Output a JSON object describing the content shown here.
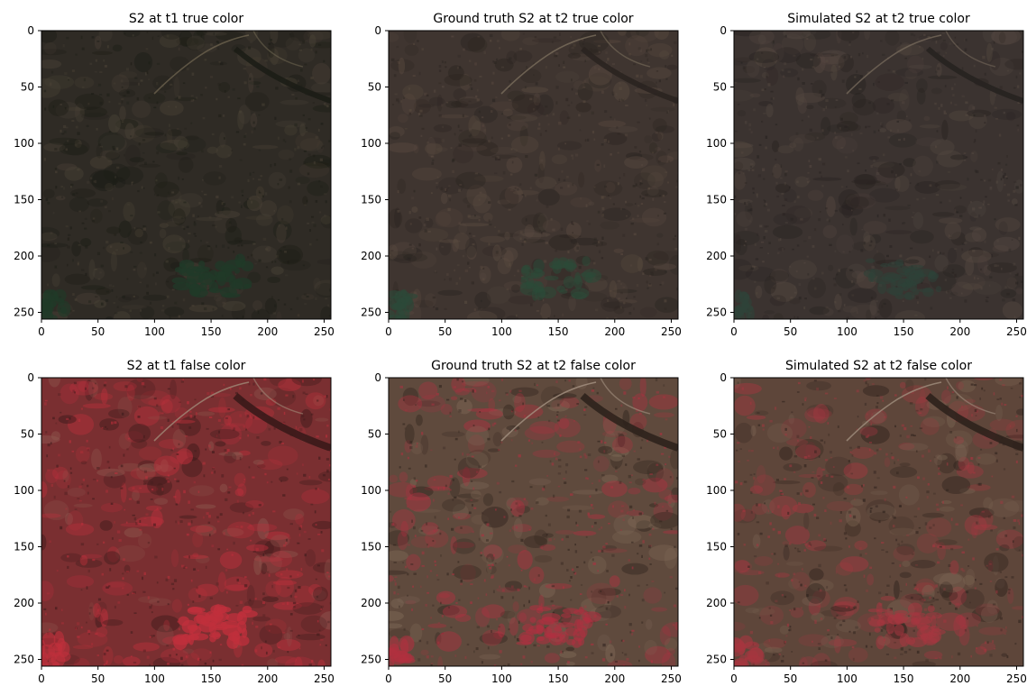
{
  "panels": [
    {
      "id": "s2-t1-true",
      "title": "S2 at t1 true color",
      "mode": "true",
      "look": "t1"
    },
    {
      "id": "gt-s2-t2-true",
      "title": "Ground truth S2 at t2 true color",
      "mode": "true",
      "look": "gt"
    },
    {
      "id": "sim-s2-t2-true",
      "title": "Simulated S2 at t2 true color",
      "mode": "true",
      "look": "sim"
    },
    {
      "id": "s2-t1-false",
      "title": "S2 at t1 false color",
      "mode": "false",
      "look": "t1"
    },
    {
      "id": "gt-s2-t2-false",
      "title": "Ground truth S2 at t2 false color",
      "mode": "false",
      "look": "gt"
    },
    {
      "id": "sim-s2-t2-false",
      "title": "Simulated S2 at t2 false color",
      "mode": "false",
      "look": "sim"
    }
  ],
  "axes": {
    "x_ticks": [
      "0",
      "50",
      "100",
      "150",
      "200",
      "250"
    ],
    "y_ticks": [
      "0",
      "50",
      "100",
      "150",
      "200",
      "250"
    ],
    "xlim": [
      0,
      256
    ],
    "ylim": [
      256,
      0
    ]
  },
  "palette": {
    "true": {
      "t1": {
        "base": "#2f2b25",
        "dark": "#1c1d16",
        "light": "#4a4236",
        "green": "#203a28",
        "road": "#6b624e"
      },
      "gt": {
        "base": "#3f3530",
        "dark": "#2a2420",
        "light": "#5a4b40",
        "green": "#2b4a38",
        "road": "#7a6e5c"
      },
      "sim": {
        "base": "#3b3330",
        "dark": "#272220",
        "light": "#544840",
        "green": "#2e4238",
        "road": "#74685a"
      }
    },
    "false": {
      "t1": {
        "base": "#7a2f31",
        "dark": "#3a1a1a",
        "red": "#c0303c",
        "light": "#8e5a50",
        "road": "#a08a78"
      },
      "gt": {
        "base": "#5f4a3d",
        "dark": "#2e221c",
        "red": "#b03040",
        "light": "#806a58",
        "road": "#a59282"
      },
      "sim": {
        "base": "#5e463a",
        "dark": "#2d211c",
        "red": "#a63640",
        "light": "#7a6352",
        "road": "#a08e7e"
      }
    },
    "frame": "#000000",
    "text": "#000000"
  }
}
